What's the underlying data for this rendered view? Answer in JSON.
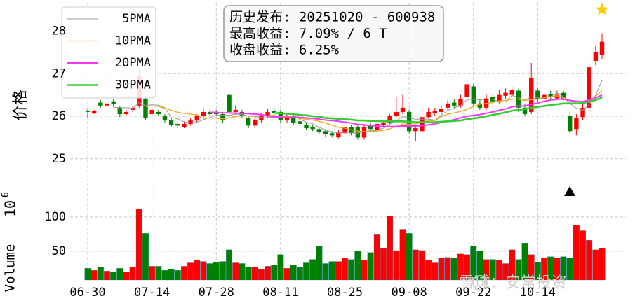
{
  "watermark": "雪球：安常投资",
  "chart_data": [
    {
      "type": "candlestick",
      "ylabel": "价格",
      "up_color": "#ff0000",
      "down_color": "#008000",
      "open": [
        26.12,
        26.08,
        26.32,
        26.25,
        26.35,
        26.2,
        26.05,
        26.15,
        26.25,
        26.4,
        26.05,
        26.1,
        26.0,
        25.9,
        25.82,
        25.75,
        25.82,
        25.9,
        26.0,
        26.1,
        26.1,
        26.05,
        26.5,
        26.1,
        26.1,
        25.95,
        25.78,
        25.9,
        26.0,
        26.12,
        26.1,
        25.9,
        26.0,
        25.88,
        25.8,
        25.75,
        25.7,
        25.65,
        25.6,
        25.52,
        25.6,
        25.75,
        25.75,
        25.5,
        25.78,
        25.68,
        25.8,
        25.85,
        26.0,
        26.1,
        26.1,
        25.65,
        25.65,
        25.98,
        26.08,
        26.1,
        26.2,
        26.32,
        26.25,
        26.45,
        26.7,
        26.3,
        26.2,
        26.45,
        26.35,
        26.48,
        26.5,
        26.6,
        26.2,
        26.1,
        26.6,
        26.4,
        26.52,
        26.42,
        26.55,
        26.0,
        25.7,
        25.98,
        26.2,
        27.3,
        27.45
      ],
      "high": [
        26.18,
        26.15,
        26.38,
        26.35,
        26.4,
        26.25,
        26.15,
        26.25,
        27.1,
        26.45,
        26.2,
        26.15,
        26.05,
        25.95,
        25.88,
        25.88,
        25.95,
        26.05,
        26.2,
        26.15,
        26.15,
        26.1,
        26.55,
        26.25,
        26.15,
        26.0,
        26.0,
        26.08,
        26.18,
        26.2,
        26.15,
        26.08,
        26.05,
        25.95,
        25.85,
        25.8,
        25.75,
        25.7,
        25.65,
        25.68,
        25.8,
        25.8,
        25.82,
        25.8,
        25.85,
        25.88,
        25.92,
        26.05,
        26.45,
        26.5,
        26.15,
        25.8,
        26.0,
        26.2,
        26.2,
        26.25,
        26.38,
        26.4,
        26.5,
        26.9,
        26.75,
        26.4,
        26.5,
        26.5,
        26.62,
        26.65,
        26.68,
        26.65,
        26.3,
        27.25,
        26.65,
        26.6,
        26.6,
        26.6,
        26.6,
        26.1,
        26.05,
        26.3,
        27.25,
        27.65,
        27.95
      ],
      "low": [
        25.95,
        26.05,
        26.2,
        26.2,
        26.22,
        25.98,
        26.0,
        26.1,
        26.2,
        25.9,
        26.0,
        26.0,
        25.85,
        25.75,
        25.72,
        25.72,
        25.78,
        25.85,
        25.95,
        26.0,
        26.0,
        25.85,
        26.05,
        26.05,
        25.95,
        25.72,
        25.72,
        25.85,
        25.95,
        26.02,
        25.85,
        25.85,
        25.8,
        25.75,
        25.68,
        25.65,
        25.58,
        25.52,
        25.5,
        25.48,
        25.55,
        25.55,
        25.45,
        25.45,
        25.65,
        25.62,
        25.75,
        25.8,
        25.95,
        26.05,
        25.6,
        25.42,
        25.6,
        25.95,
        26.02,
        26.05,
        26.15,
        26.2,
        26.2,
        26.4,
        26.25,
        26.15,
        26.15,
        26.3,
        26.3,
        26.4,
        26.45,
        26.1,
        26.0,
        26.05,
        26.35,
        26.35,
        26.4,
        26.38,
        26.38,
        25.6,
        25.55,
        25.9,
        26.15,
        27.2,
        27.35
      ],
      "close": [
        26.1,
        26.12,
        26.25,
        26.3,
        26.28,
        26.05,
        26.1,
        26.2,
        26.95,
        25.95,
        26.15,
        26.05,
        25.9,
        25.8,
        25.78,
        25.82,
        25.9,
        26.0,
        26.1,
        26.05,
        26.05,
        25.9,
        26.1,
        26.15,
        26.0,
        25.78,
        25.92,
        26.02,
        26.1,
        26.08,
        25.9,
        26.0,
        25.85,
        25.82,
        25.72,
        25.7,
        25.62,
        25.58,
        25.55,
        25.62,
        25.75,
        25.6,
        25.5,
        25.75,
        25.7,
        25.82,
        25.85,
        26.0,
        26.1,
        26.2,
        25.65,
        25.72,
        25.98,
        26.1,
        26.12,
        26.18,
        26.3,
        26.25,
        26.4,
        26.75,
        26.3,
        26.2,
        26.42,
        26.35,
        26.5,
        26.55,
        26.62,
        26.2,
        26.05,
        26.9,
        26.4,
        26.5,
        26.45,
        26.5,
        26.42,
        25.65,
        25.95,
        26.2,
        27.15,
        27.5,
        27.75
      ],
      "series": [
        {
          "name": "  5PMA",
          "color": "#999999",
          "width": 1,
          "values": [
            null,
            null,
            null,
            null,
            26.21,
            26.2,
            26.2,
            26.19,
            26.32,
            26.25,
            26.27,
            26.26,
            26.2,
            25.97,
            25.94,
            25.87,
            25.84,
            25.86,
            25.92,
            25.97,
            26.02,
            26.02,
            26.02,
            26.05,
            26.04,
            26.0,
            25.99,
            25.97,
            25.96,
            25.98,
            26.0,
            26.02,
            25.99,
            25.93,
            25.86,
            25.82,
            25.74,
            25.68,
            25.63,
            25.61,
            25.62,
            25.62,
            25.6,
            25.64,
            25.66,
            25.67,
            25.72,
            25.82,
            25.89,
            25.99,
            25.96,
            25.93,
            25.93,
            25.93,
            25.91,
            26.02,
            26.14,
            26.19,
            26.25,
            26.39,
            26.4,
            26.38,
            26.41,
            26.4,
            26.33,
            26.34,
            26.49,
            26.44,
            26.38,
            26.46,
            26.43,
            26.43,
            26.46,
            26.55,
            26.45,
            26.3,
            26.19,
            26.14,
            26.27,
            26.49,
            26.84
          ]
        },
        {
          "name": " 10PMA",
          "color": "#f5a623",
          "width": 1.3,
          "values": [
            null,
            null,
            null,
            null,
            null,
            null,
            null,
            null,
            null,
            26.23,
            26.24,
            26.23,
            26.19,
            26.14,
            26.09,
            26.07,
            26.05,
            26.03,
            25.95,
            25.96,
            25.95,
            25.94,
            25.96,
            25.99,
            26.01,
            26.0,
            26.0,
            26.01,
            26.01,
            26.02,
            26.0,
            26.0,
            25.98,
            25.95,
            25.93,
            25.91,
            25.88,
            25.84,
            25.79,
            25.74,
            25.72,
            25.68,
            25.65,
            25.64,
            25.64,
            25.65,
            25.67,
            25.71,
            25.76,
            25.82,
            25.81,
            25.82,
            25.86,
            25.89,
            25.9,
            25.99,
            26.05,
            26.08,
            26.11,
            26.16,
            26.23,
            26.28,
            26.3,
            26.32,
            26.36,
            26.37,
            26.4,
            26.4,
            26.37,
            26.39,
            26.4,
            26.43,
            26.46,
            26.48,
            26.44,
            26.37,
            26.31,
            26.3,
            26.36,
            26.47,
            26.6
          ]
        },
        {
          "name": " 20PMA",
          "color": "#ff33ff",
          "width": 2,
          "values": [
            null,
            null,
            null,
            null,
            null,
            null,
            null,
            null,
            null,
            null,
            null,
            null,
            null,
            null,
            null,
            null,
            null,
            null,
            null,
            26.09,
            26.09,
            26.08,
            26.08,
            26.07,
            26.07,
            26.06,
            26.05,
            26.04,
            26.0,
            25.99,
            25.98,
            25.97,
            25.97,
            25.97,
            25.96,
            25.95,
            25.93,
            25.91,
            25.9,
            25.88,
            25.86,
            25.84,
            25.81,
            25.8,
            25.78,
            25.77,
            25.76,
            25.76,
            25.76,
            25.77,
            25.77,
            25.77,
            25.78,
            25.8,
            25.82,
            25.86,
            25.89,
            25.92,
            25.96,
            26.0,
            26.02,
            26.04,
            26.07,
            26.1,
            26.14,
            26.17,
            26.22,
            26.24,
            26.24,
            26.28,
            26.31,
            26.35,
            26.38,
            26.4,
            26.4,
            26.37,
            26.35,
            26.34,
            26.38,
            26.43,
            26.5
          ]
        },
        {
          "name": " 30PMA",
          "color": "#33cc33",
          "width": 2.6,
          "values": [
            null,
            null,
            null,
            null,
            null,
            null,
            null,
            null,
            null,
            null,
            null,
            null,
            null,
            null,
            null,
            null,
            null,
            null,
            null,
            null,
            null,
            null,
            null,
            null,
            null,
            null,
            null,
            null,
            null,
            26.08,
            26.07,
            26.06,
            26.05,
            26.03,
            26.02,
            26.0,
            25.99,
            25.96,
            25.95,
            25.94,
            25.93,
            25.92,
            25.9,
            25.9,
            25.89,
            25.89,
            25.88,
            25.88,
            25.88,
            25.88,
            25.87,
            25.86,
            25.86,
            25.86,
            25.86,
            25.87,
            25.88,
            25.89,
            25.9,
            25.93,
            25.95,
            25.97,
            26.0,
            26.03,
            26.06,
            26.09,
            26.13,
            26.15,
            26.17,
            26.2,
            26.22,
            26.24,
            26.26,
            26.28,
            26.3,
            26.3,
            26.3,
            26.31,
            26.34,
            26.38,
            26.44
          ]
        }
      ],
      "legend": "upper left",
      "annotation": [
        "历史发布: 20251020 - 600938",
        "最高收益: 7.09% / 6 T",
        "收盘收益: 6.25%"
      ],
      "ylim": [
        24.7,
        28.65
      ],
      "yticks": [
        25,
        26,
        27,
        28
      ],
      "grid": true
    },
    {
      "type": "bar",
      "ylabel": "Volume",
      "scale_label": {
        "base": "10",
        "exponent": "6"
      },
      "categories": [
        "06-30",
        null,
        null,
        null,
        null,
        null,
        null,
        null,
        null,
        null,
        "07-14",
        null,
        null,
        null,
        null,
        null,
        null,
        null,
        null,
        null,
        "07-28",
        null,
        null,
        null,
        null,
        null,
        null,
        null,
        null,
        null,
        "08-11",
        null,
        null,
        null,
        null,
        null,
        null,
        null,
        null,
        null,
        "08-25",
        null,
        null,
        null,
        null,
        null,
        null,
        null,
        null,
        null,
        "09-08",
        null,
        null,
        null,
        null,
        null,
        null,
        null,
        null,
        null,
        "09-22",
        null,
        null,
        null,
        null,
        null,
        null,
        null,
        null,
        null,
        "10-14",
        null,
        null,
        null,
        null,
        null,
        null,
        null,
        null,
        null,
        null
      ],
      "values": [
        25,
        22,
        27,
        21,
        20,
        25,
        20,
        27,
        112,
        76,
        28,
        28,
        22,
        24,
        22,
        28,
        33,
        37,
        35,
        32,
        34,
        35,
        52,
        33,
        32,
        27,
        27,
        24,
        28,
        30,
        45,
        25,
        30,
        27,
        33,
        38,
        57,
        32,
        35,
        35,
        40,
        38,
        50,
        37,
        48,
        75,
        54,
        101,
        50,
        82,
        76,
        52,
        51,
        37,
        33,
        40,
        41,
        40,
        46,
        45,
        58,
        50,
        38,
        38,
        37,
        32,
        52,
        38,
        62,
        45,
        34,
        40,
        42,
        40,
        42,
        40,
        88,
        80,
        66,
        52,
        54
      ],
      "ylim": [
        8,
        156
      ],
      "yticks": [
        50,
        100
      ],
      "grid": true
    }
  ]
}
